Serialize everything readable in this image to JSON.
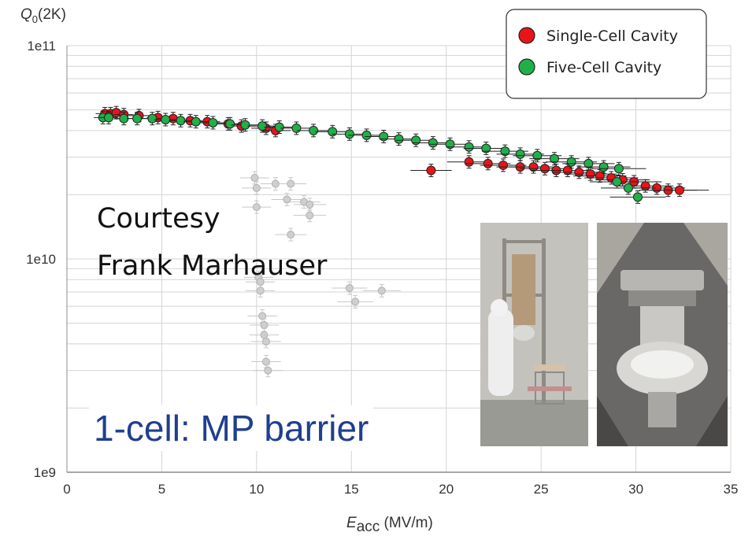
{
  "chart_data": {
    "type": "scatter",
    "title": "",
    "ylabel": "Q0(2K)",
    "xlabel": "Eacc (MV/m)",
    "yscale": "log",
    "xlim": [
      0,
      35
    ],
    "ylim": [
      1000000000.0,
      100000000000.0
    ],
    "x_ticks": [
      0,
      5,
      10,
      15,
      20,
      25,
      30,
      35
    ],
    "y_ticks": [
      {
        "value": 1000000000.0,
        "label": "1e9"
      },
      {
        "value": 10000000000.0,
        "label": "1e10"
      },
      {
        "value": 100000000000.0,
        "label": "1e11"
      }
    ],
    "grid": true,
    "legend_position": "top-right",
    "series": [
      {
        "name": "Single-Cell Cavity",
        "color": "#e8141a",
        "points": [
          {
            "x": 2.0,
            "y": 48000000000.0
          },
          {
            "x": 2.3,
            "y": 48000000000.0
          },
          {
            "x": 2.6,
            "y": 48500000000.0
          },
          {
            "x": 3.0,
            "y": 47500000000.0
          },
          {
            "x": 3.8,
            "y": 47000000000.0
          },
          {
            "x": 4.8,
            "y": 46000000000.0
          },
          {
            "x": 5.6,
            "y": 45500000000.0
          },
          {
            "x": 6.5,
            "y": 44500000000.0
          },
          {
            "x": 7.4,
            "y": 44000000000.0
          },
          {
            "x": 8.5,
            "y": 43000000000.0
          },
          {
            "x": 9.2,
            "y": 42000000000.0
          },
          {
            "x": 10.5,
            "y": 41000000000.0
          },
          {
            "x": 11.0,
            "y": 40000000000.0
          },
          {
            "x": 19.2,
            "y": 26000000000.0
          },
          {
            "x": 21.2,
            "y": 28500000000.0
          },
          {
            "x": 22.2,
            "y": 28000000000.0
          },
          {
            "x": 23.0,
            "y": 27500000000.0
          },
          {
            "x": 23.9,
            "y": 27000000000.0
          },
          {
            "x": 24.6,
            "y": 27000000000.0
          },
          {
            "x": 25.2,
            "y": 26500000000.0
          },
          {
            "x": 25.8,
            "y": 26000000000.0
          },
          {
            "x": 26.4,
            "y": 26000000000.0
          },
          {
            "x": 27.0,
            "y": 25500000000.0
          },
          {
            "x": 27.6,
            "y": 25000000000.0
          },
          {
            "x": 28.1,
            "y": 24500000000.0
          },
          {
            "x": 28.7,
            "y": 24000000000.0
          },
          {
            "x": 29.3,
            "y": 23500000000.0
          },
          {
            "x": 29.9,
            "y": 23000000000.0
          },
          {
            "x": 30.5,
            "y": 22000000000.0
          },
          {
            "x": 31.1,
            "y": 21500000000.0
          },
          {
            "x": 31.7,
            "y": 21000000000.0
          },
          {
            "x": 32.3,
            "y": 21000000000.0
          }
        ]
      },
      {
        "name": "Five-Cell Cavity",
        "color": "#1fb04a",
        "points": [
          {
            "x": 1.9,
            "y": 46000000000.0
          },
          {
            "x": 2.2,
            "y": 46000000000.0
          },
          {
            "x": 3.0,
            "y": 45500000000.0
          },
          {
            "x": 3.7,
            "y": 45500000000.0
          },
          {
            "x": 4.5,
            "y": 45500000000.0
          },
          {
            "x": 5.2,
            "y": 45000000000.0
          },
          {
            "x": 6.0,
            "y": 44500000000.0
          },
          {
            "x": 6.8,
            "y": 44000000000.0
          },
          {
            "x": 7.7,
            "y": 43500000000.0
          },
          {
            "x": 8.6,
            "y": 43000000000.0
          },
          {
            "x": 9.4,
            "y": 42500000000.0
          },
          {
            "x": 10.3,
            "y": 42000000000.0
          },
          {
            "x": 11.2,
            "y": 41500000000.0
          },
          {
            "x": 12.1,
            "y": 41000000000.0
          },
          {
            "x": 13.0,
            "y": 40000000000.0
          },
          {
            "x": 14.0,
            "y": 39500000000.0
          },
          {
            "x": 14.9,
            "y": 38500000000.0
          },
          {
            "x": 15.8,
            "y": 38000000000.0
          },
          {
            "x": 16.7,
            "y": 37500000000.0
          },
          {
            "x": 17.5,
            "y": 36500000000.0
          },
          {
            "x": 18.4,
            "y": 36000000000.0
          },
          {
            "x": 19.3,
            "y": 35000000000.0
          },
          {
            "x": 20.2,
            "y": 34500000000.0
          },
          {
            "x": 21.2,
            "y": 33500000000.0
          },
          {
            "x": 22.1,
            "y": 33000000000.0
          },
          {
            "x": 23.1,
            "y": 32000000000.0
          },
          {
            "x": 23.9,
            "y": 31000000000.0
          },
          {
            "x": 24.8,
            "y": 30500000000.0
          },
          {
            "x": 25.7,
            "y": 29500000000.0
          },
          {
            "x": 26.6,
            "y": 28500000000.0
          },
          {
            "x": 27.5,
            "y": 28000000000.0
          },
          {
            "x": 28.3,
            "y": 27000000000.0
          },
          {
            "x": 29.1,
            "y": 26500000000.0
          },
          {
            "x": 29.0,
            "y": 23000000000.0
          },
          {
            "x": 29.6,
            "y": 21500000000.0
          },
          {
            "x": 30.1,
            "y": 19500000000.0
          }
        ]
      },
      {
        "name": "",
        "color": "#cfcfcf",
        "points": [
          {
            "x": 9.9,
            "y": 24000000000.0
          },
          {
            "x": 10.0,
            "y": 21500000000.0
          },
          {
            "x": 10.0,
            "y": 17500000000.0
          },
          {
            "x": 11.0,
            "y": 22500000000.0
          },
          {
            "x": 11.8,
            "y": 22500000000.0
          },
          {
            "x": 12.5,
            "y": 18500000000.0
          },
          {
            "x": 11.6,
            "y": 19000000000.0
          },
          {
            "x": 12.8,
            "y": 18000000000.0
          },
          {
            "x": 12.8,
            "y": 16000000000.0
          },
          {
            "x": 11.8,
            "y": 13000000000.0
          },
          {
            "x": 10.1,
            "y": 8200000000.0
          },
          {
            "x": 10.2,
            "y": 7800000000.0
          },
          {
            "x": 10.2,
            "y": 7100000000.0
          },
          {
            "x": 10.3,
            "y": 5400000000.0
          },
          {
            "x": 10.4,
            "y": 4900000000.0
          },
          {
            "x": 10.4,
            "y": 4400000000.0
          },
          {
            "x": 10.5,
            "y": 4100000000.0
          },
          {
            "x": 10.5,
            "y": 3300000000.0
          },
          {
            "x": 10.6,
            "y": 3000000000.0
          },
          {
            "x": 14.9,
            "y": 7300000000.0
          },
          {
            "x": 15.2,
            "y": 6300000000.0
          },
          {
            "x": 16.6,
            "y": 7100000000.0
          }
        ]
      }
    ]
  },
  "annotations": {
    "courtesy_line1": "Courtesy",
    "courtesy_line2": "Frank Marhauser",
    "barrier_label": "1-cell: MP barrier"
  }
}
